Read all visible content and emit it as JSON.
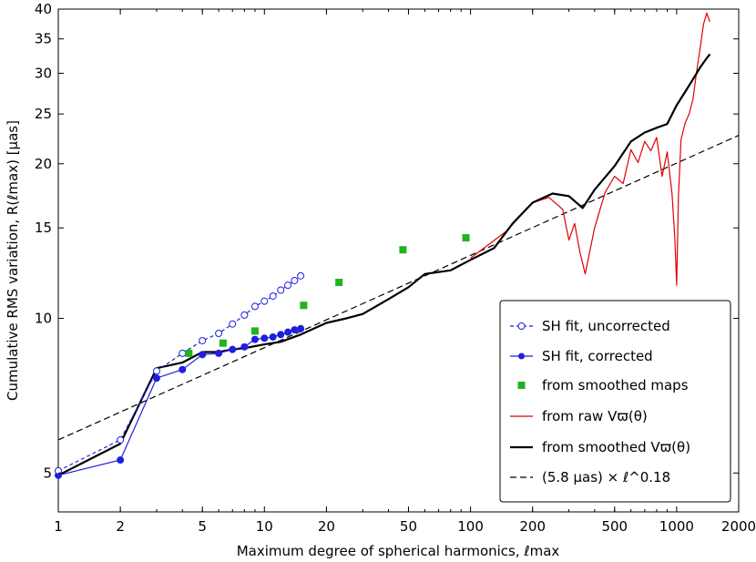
{
  "chart_data": {
    "type": "line",
    "title": "",
    "xlabel": "Maximum degree of spherical harmonics, ℓmax",
    "ylabel": "Cumulative RMS variation, R(ℓmax) [μas]",
    "xscale": "log",
    "yscale": "log",
    "xlim": [
      1,
      2000
    ],
    "ylim": [
      4.2,
      40
    ],
    "x_ticks": [
      1,
      2,
      5,
      10,
      20,
      50,
      100,
      200,
      500,
      1000,
      2000
    ],
    "x_tick_labels": [
      "1",
      "2",
      "5",
      "10",
      "20",
      "50",
      "100",
      "200",
      "500",
      "1000",
      "2000"
    ],
    "y_ticks": [
      5,
      10,
      15,
      20,
      25,
      30,
      35,
      40
    ],
    "y_tick_labels": [
      "5",
      "10",
      "15",
      "20",
      "25",
      "30",
      "35",
      "40"
    ],
    "grid": false,
    "legend_position": "bottom-right",
    "legend": [
      "SH fit, uncorrected",
      "SH fit, corrected",
      "from smoothed maps",
      "from raw Vϖ(θ)",
      "from smoothed Vϖ(θ)",
      "(5.8 μas) × ℓ^0.18"
    ],
    "series": [
      {
        "name": "SH fit, uncorrected",
        "color": "#1f1fdf",
        "style": "dashed-open-circles",
        "x": [
          1,
          2,
          3,
          4,
          5,
          6,
          7,
          8,
          9,
          10,
          11,
          12,
          13,
          14,
          15
        ],
        "y": [
          5.05,
          5.8,
          7.9,
          8.55,
          9.05,
          9.35,
          9.75,
          10.15,
          10.55,
          10.8,
          11.05,
          11.35,
          11.6,
          11.85,
          12.1
        ]
      },
      {
        "name": "SH fit, corrected",
        "color": "#1f1fdf",
        "style": "solid-filled-circles",
        "x": [
          1,
          2,
          3,
          4,
          5,
          6,
          7,
          8,
          9,
          10,
          11,
          12,
          13,
          14,
          15
        ],
        "y": [
          4.95,
          5.3,
          7.65,
          7.95,
          8.5,
          8.55,
          8.7,
          8.8,
          9.1,
          9.15,
          9.2,
          9.3,
          9.4,
          9.5,
          9.55
        ]
      },
      {
        "name": "from smoothed maps",
        "color": "#1fb31f",
        "style": "squares",
        "x": [
          4.3,
          6.3,
          9.0,
          15.5,
          23,
          47,
          95
        ],
        "y": [
          8.55,
          8.95,
          9.45,
          10.6,
          11.75,
          13.6,
          14.35
        ]
      },
      {
        "name": "from raw Vϖ(θ)",
        "color": "#e00000",
        "style": "thin-line",
        "x": [
          100,
          150,
          200,
          240,
          280,
          300,
          320,
          340,
          360,
          400,
          450,
          500,
          550,
          600,
          650,
          700,
          750,
          800,
          850,
          900,
          950,
          980,
          1000,
          1020,
          1050,
          1100,
          1150,
          1200,
          1250,
          1300,
          1350,
          1400,
          1450
        ],
        "y": [
          13.1,
          14.8,
          16.8,
          17.2,
          16.3,
          14.2,
          15.3,
          13.4,
          12.2,
          15.0,
          17.6,
          18.9,
          18.3,
          21.3,
          20.1,
          22.1,
          21.2,
          22.5,
          18.9,
          21.1,
          17.5,
          14.3,
          11.6,
          17.2,
          22.3,
          24.0,
          25.0,
          26.7,
          30.2,
          33.6,
          37.4,
          39.3,
          37.8
        ]
      },
      {
        "name": "from smoothed Vϖ(θ)",
        "color": "#000000",
        "style": "thick-line",
        "x": [
          1,
          2,
          3,
          4,
          5,
          6,
          7,
          8,
          10,
          12,
          15,
          20,
          25,
          30,
          40,
          50,
          60,
          80,
          100,
          130,
          160,
          200,
          250,
          300,
          350,
          400,
          500,
          600,
          700,
          800,
          900,
          1000,
          1100,
          1200,
          1300,
          1400,
          1450
        ],
        "y": [
          4.95,
          5.7,
          8.0,
          8.2,
          8.6,
          8.6,
          8.7,
          8.75,
          8.9,
          9.0,
          9.3,
          9.8,
          10.0,
          10.2,
          10.9,
          11.5,
          12.2,
          12.4,
          13.0,
          13.7,
          15.3,
          16.8,
          17.5,
          17.3,
          16.4,
          17.8,
          19.8,
          22.1,
          23.0,
          23.5,
          23.9,
          26.0,
          27.6,
          29.2,
          30.8,
          32.1,
          32.7
        ]
      },
      {
        "name": "(5.8 μas) × ℓ^0.18",
        "color": "#000000",
        "style": "dashed-line",
        "x": [
          1,
          2000
        ],
        "y": [
          5.8,
          22.71
        ]
      }
    ]
  }
}
